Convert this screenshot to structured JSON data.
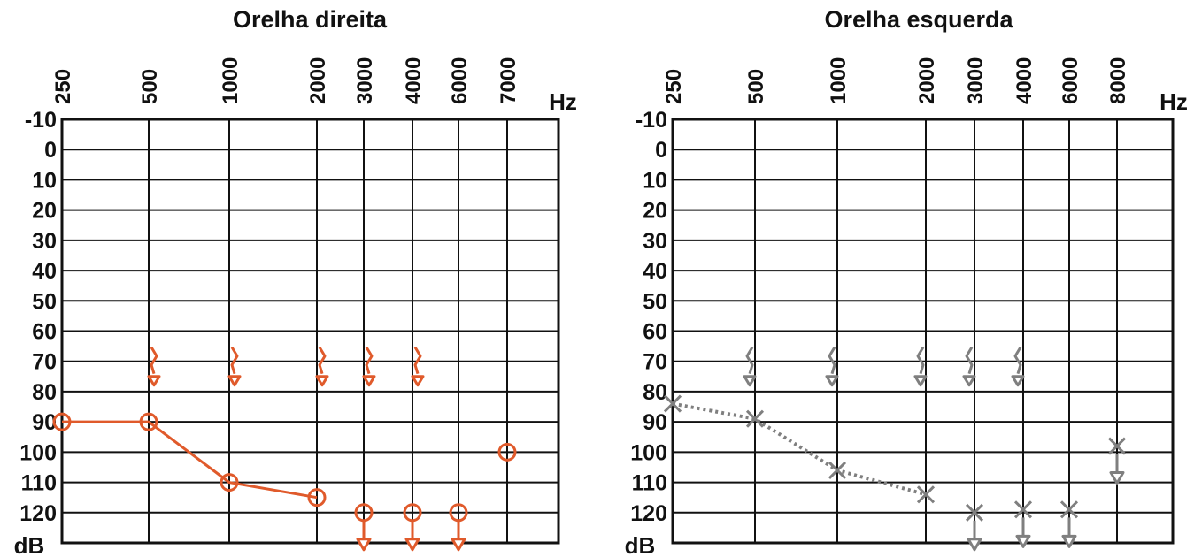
{
  "colors": {
    "right_ear": "#e05a2b",
    "left_ear": "#7f7f7f",
    "grid": "#111111"
  },
  "chart_data": [
    {
      "type": "line",
      "title": "Orelha direita",
      "x_unit": "Hz",
      "y_unit": "dB",
      "x_ticks": [
        "250",
        "500",
        "1000",
        "2000",
        "3000",
        "4000",
        "6000",
        "7000"
      ],
      "y_ticks": [
        "-10",
        "0",
        "10",
        "20",
        "30",
        "40",
        "50",
        "60",
        "70",
        "80",
        "90",
        "100",
        "110",
        "120"
      ],
      "ylim": [
        -10,
        130
      ],
      "y_inverted": true,
      "grid": true,
      "color": "#e05a2b",
      "air_conduction": {
        "symbol": "O",
        "connected": true,
        "points": [
          {
            "x": "250",
            "y": 90
          },
          {
            "x": "500",
            "y": 90
          },
          {
            "x": "1000",
            "y": 110
          },
          {
            "x": "2000",
            "y": 115
          }
        ]
      },
      "air_conduction_no_response": {
        "symbol": "O with down arrow",
        "points": [
          {
            "x": "3000",
            "y": 120
          },
          {
            "x": "4000",
            "y": 120
          },
          {
            "x": "6000",
            "y": 120
          }
        ]
      },
      "air_conduction_isolated": {
        "symbol": "O",
        "points": [
          {
            "x": "7000",
            "y": 100
          }
        ]
      },
      "bone_conduction_no_response": {
        "symbol": "< with down arrow",
        "points": [
          {
            "x": "500",
            "y": 70
          },
          {
            "x": "1000",
            "y": 70
          },
          {
            "x": "2000",
            "y": 70
          },
          {
            "x": "3000",
            "y": 70
          },
          {
            "x": "4000",
            "y": 70
          }
        ]
      }
    },
    {
      "type": "line",
      "title": "Orelha esquerda",
      "x_unit": "Hz",
      "y_unit": "dB",
      "x_ticks": [
        "250",
        "500",
        "1000",
        "2000",
        "3000",
        "4000",
        "6000",
        "8000"
      ],
      "y_ticks": [
        "-10",
        "0",
        "10",
        "20",
        "30",
        "40",
        "50",
        "60",
        "70",
        "80",
        "90",
        "100",
        "110",
        "120"
      ],
      "ylim": [
        -10,
        130
      ],
      "y_inverted": true,
      "grid": true,
      "color": "#7f7f7f",
      "air_conduction": {
        "symbol": "X",
        "connected": true,
        "line_style": "dotted",
        "points": [
          {
            "x": "250",
            "y": 84
          },
          {
            "x": "500",
            "y": 89
          },
          {
            "x": "1000",
            "y": 106
          },
          {
            "x": "2000",
            "y": 114
          }
        ]
      },
      "air_conduction_no_response": {
        "symbol": "X with down arrow",
        "points": [
          {
            "x": "3000",
            "y": 120
          },
          {
            "x": "4000",
            "y": 119
          },
          {
            "x": "6000",
            "y": 119
          },
          {
            "x": "8000",
            "y": 98
          }
        ]
      },
      "bone_conduction_no_response": {
        "symbol": "> with down arrow",
        "points": [
          {
            "x": "500",
            "y": 70
          },
          {
            "x": "1000",
            "y": 70
          },
          {
            "x": "2000",
            "y": 70
          },
          {
            "x": "3000",
            "y": 70
          },
          {
            "x": "4000",
            "y": 70
          }
        ]
      }
    }
  ]
}
